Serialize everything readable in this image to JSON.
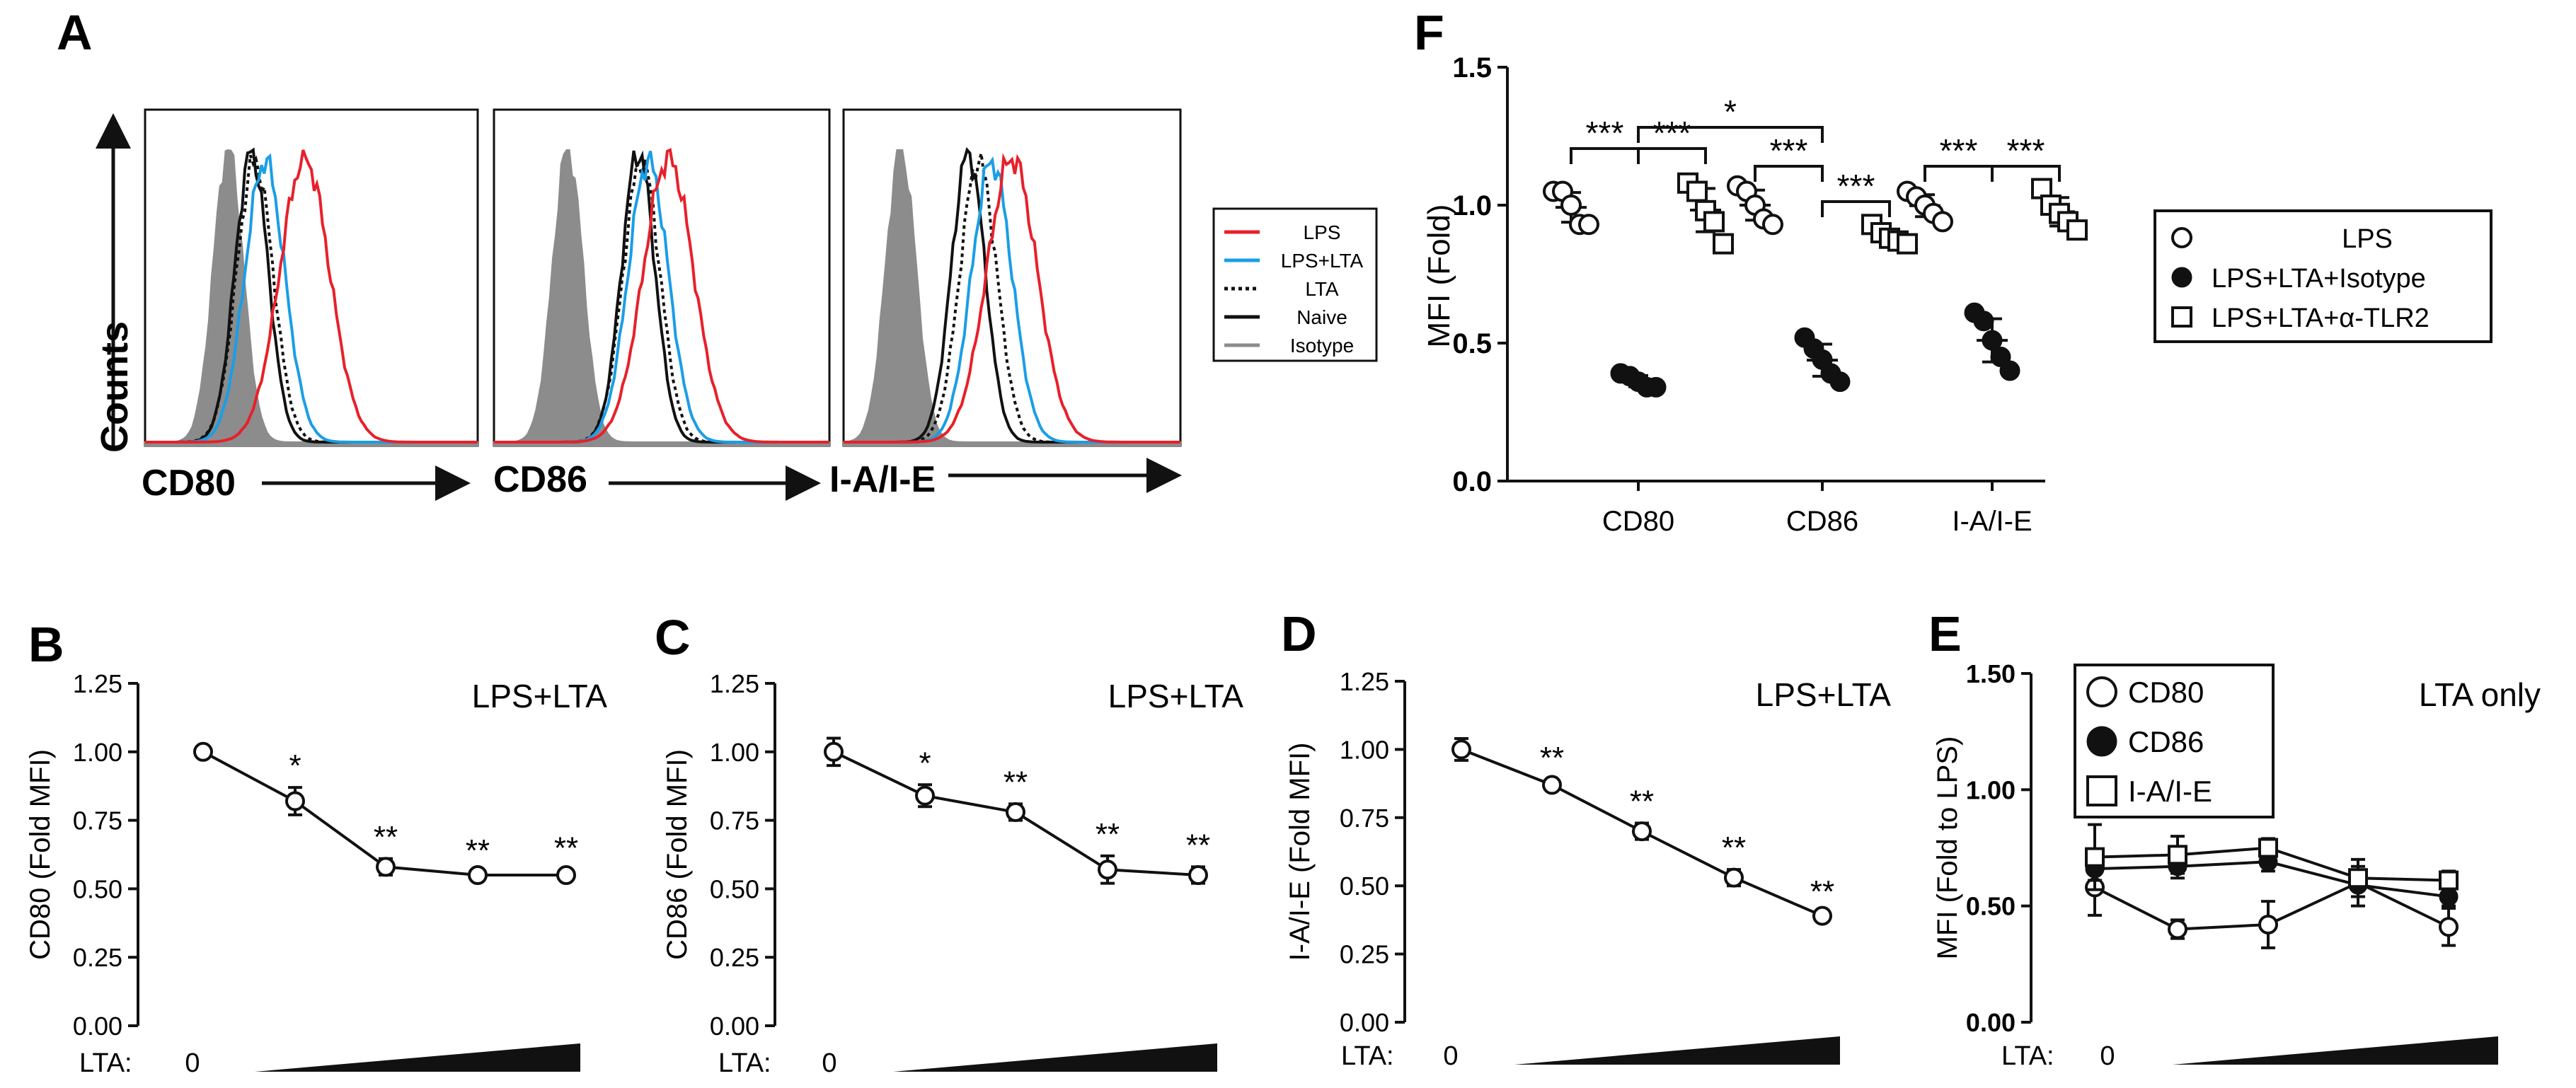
{
  "colors": {
    "lps": "#e8202a",
    "lps_lta": "#1a9ee6",
    "isotype_fill": "#8c8c8c",
    "black": "#111111"
  },
  "panel_labels": {
    "A": "A",
    "B": "B",
    "C": "C",
    "D": "D",
    "E": "E",
    "F": "F"
  },
  "panel_a": {
    "y_label": "Counts",
    "x_labels": [
      "CD80",
      "CD86",
      "I-A/I-E"
    ],
    "legend": [
      {
        "label": "LPS",
        "style": "red-solid"
      },
      {
        "label": "LPS+LTA",
        "style": "blue-solid"
      },
      {
        "label": "LTA",
        "style": "black-dotted"
      },
      {
        "label": "Naive",
        "style": "black-solid"
      },
      {
        "label": "Isotype",
        "style": "grey-filled"
      }
    ],
    "histogram_peaks": [
      {
        "marker": "CD80",
        "isotype": 0.25,
        "naive": 0.32,
        "lta": 0.33,
        "lps_lta": 0.36,
        "lps": 0.48
      },
      {
        "marker": "CD86",
        "isotype": 0.22,
        "naive": 0.43,
        "lta": 0.44,
        "lps_lta": 0.46,
        "lps": 0.52
      },
      {
        "marker": "I-A/I-E",
        "isotype": 0.17,
        "naive": 0.37,
        "lta": 0.4,
        "lps_lta": 0.44,
        "lps": 0.5
      }
    ]
  },
  "chart_data": [
    {
      "panel": "B",
      "type": "line",
      "title": "LPS+LTA",
      "ylabel": "CD80 (Fold MFI)",
      "ylim": [
        0,
        1.25
      ],
      "yticks": [
        "0.00",
        "0.25",
        "0.50",
        "0.75",
        "1.00",
        "1.25"
      ],
      "x_label": "LTA:",
      "x_zero": "0",
      "series": [
        {
          "name": "CD80",
          "marker": "open-circle",
          "values": [
            1.0,
            0.82,
            0.58,
            0.55,
            0.55
          ],
          "errors": [
            0.02,
            0.05,
            0.03,
            0.01,
            0.02
          ],
          "significance": [
            "",
            "*",
            "**",
            "**",
            "**"
          ]
        }
      ]
    },
    {
      "panel": "C",
      "type": "line",
      "title": "LPS+LTA",
      "ylabel": "CD86 (Fold MFI)",
      "ylim": [
        0,
        1.25
      ],
      "yticks": [
        "0.00",
        "0.25",
        "0.50",
        "0.75",
        "1.00",
        "1.25"
      ],
      "x_label": "LTA:",
      "x_zero": "0",
      "series": [
        {
          "name": "CD86",
          "marker": "open-circle",
          "values": [
            1.0,
            0.84,
            0.78,
            0.57,
            0.55
          ],
          "errors": [
            0.05,
            0.04,
            0.03,
            0.05,
            0.03
          ],
          "significance": [
            "",
            "*",
            "**",
            "**",
            "**"
          ]
        }
      ]
    },
    {
      "panel": "D",
      "type": "line",
      "title": "LPS+LTA",
      "ylabel": "I-A/I-E (Fold MFI)",
      "ylim": [
        0,
        1.25
      ],
      "yticks": [
        "0.00",
        "0.25",
        "0.50",
        "0.75",
        "1.00",
        "1.25"
      ],
      "x_label": "LTA:",
      "x_zero": "0",
      "series": [
        {
          "name": "I-A/I-E",
          "marker": "open-circle",
          "values": [
            1.0,
            0.87,
            0.7,
            0.53,
            0.39
          ],
          "errors": [
            0.04,
            0.02,
            0.03,
            0.03,
            0.01
          ],
          "significance": [
            "",
            "**",
            "**",
            "**",
            "**"
          ]
        }
      ]
    },
    {
      "panel": "E",
      "type": "line",
      "title": "LTA only",
      "ylabel": "MFI (Fold to LPS)",
      "ylim": [
        0,
        1.5
      ],
      "yticks": [
        "0.00",
        "0.50",
        "1.00",
        "1.50"
      ],
      "x_label": "LTA:",
      "x_zero": "0",
      "legend": [
        "CD80",
        "CD86",
        "I-A/I-E"
      ],
      "series": [
        {
          "name": "CD80",
          "marker": "open-circle",
          "values": [
            0.58,
            0.4,
            0.42,
            0.6,
            0.41
          ],
          "errors": [
            0.12,
            0.04,
            0.1,
            0.1,
            0.08
          ]
        },
        {
          "name": "CD86",
          "marker": "filled-circle",
          "values": [
            0.66,
            0.67,
            0.69,
            0.59,
            0.54
          ],
          "errors": [
            0.05,
            0.05,
            0.04,
            0.05,
            0.04
          ]
        },
        {
          "name": "I-A/I-E",
          "marker": "open-square",
          "values": [
            0.71,
            0.72,
            0.75,
            0.62,
            0.61
          ],
          "errors": [
            0.14,
            0.08,
            0.04,
            0.05,
            0.04
          ]
        }
      ]
    },
    {
      "panel": "F",
      "type": "scatter",
      "ylabel": "MFI (Fold)",
      "ylim": [
        0,
        1.5
      ],
      "yticks": [
        "0.0",
        "0.5",
        "1.0",
        "1.5"
      ],
      "categories": [
        "CD80",
        "CD86",
        "I-A/I-E"
      ],
      "legend": [
        "LPS",
        "LPS+LTA+Isotype",
        "LPS+LTA+α-TLR2"
      ],
      "groups": [
        {
          "category": "CD80",
          "LPS": [
            1.05,
            1.05,
            1.0,
            0.93,
            0.93
          ],
          "LPS+LTA+Isotype": [
            0.39,
            0.38,
            0.36,
            0.34,
            0.34
          ],
          "LPS+LTA+α-TLR2": [
            1.08,
            1.05,
            0.98,
            0.94,
            0.86
          ]
        },
        {
          "category": "CD86",
          "LPS": [
            1.07,
            1.05,
            1.0,
            0.95,
            0.93
          ],
          "LPS+LTA+Isotype": [
            0.52,
            0.48,
            0.44,
            0.39,
            0.36
          ],
          "LPS+LTA+α-TLR2": [
            0.93,
            0.9,
            0.88,
            0.87,
            0.86
          ]
        },
        {
          "category": "I-A/I-E",
          "LPS": [
            1.05,
            1.03,
            1.0,
            0.97,
            0.94
          ],
          "LPS+LTA+Isotype": [
            0.61,
            0.58,
            0.51,
            0.45,
            0.4
          ],
          "LPS+LTA+α-TLR2": [
            1.06,
            1.0,
            0.97,
            0.94,
            0.91
          ]
        }
      ],
      "significance": [
        {
          "label": "***",
          "from": "CD80/LPS",
          "to": "CD80/Isotype"
        },
        {
          "label": "***",
          "from": "CD80/Isotype",
          "to": "CD80/α-TLR2"
        },
        {
          "label": "*",
          "from": "CD80/Isotype",
          "to": "CD86/Isotype"
        },
        {
          "label": "***",
          "from": "CD86/LPS",
          "to": "CD86/Isotype"
        },
        {
          "label": "***",
          "from": "CD86/Isotype",
          "to": "CD86/α-TLR2"
        },
        {
          "label": "***",
          "from": "I-A/I-E/LPS",
          "to": "I-A/I-E/Isotype"
        },
        {
          "label": "***",
          "from": "I-A/I-E/Isotype",
          "to": "I-A/I-E/α-TLR2"
        }
      ]
    }
  ]
}
